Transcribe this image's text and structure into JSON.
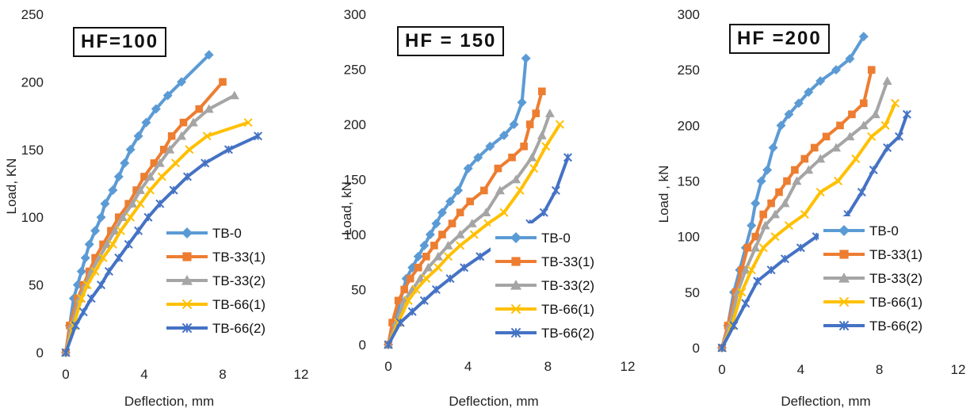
{
  "colors": {
    "TB-0": "#5B9BD5",
    "TB-33(1)": "#ED7D31",
    "TB-33(2)": "#A5A5A5",
    "TB-66(1)": "#FFC000",
    "TB-66(2)": "#4472C4"
  },
  "markers": {
    "TB-0": "diamond",
    "TB-33(1)": "square",
    "TB-33(2)": "triangle",
    "TB-66(1)": "x",
    "TB-66(2)": "star"
  },
  "chart_data": [
    {
      "type": "line",
      "label": "HF=100",
      "xlabel": "Deflection,  mm",
      "ylabel": "Load, KN",
      "xlim": [
        0,
        12
      ],
      "ylim": [
        0,
        250
      ],
      "xticks": [
        "0",
        "4",
        "8",
        "12"
      ],
      "yticks": [
        "0",
        "50",
        "100",
        "150",
        "200",
        "250"
      ],
      "legend_position": "bottom-right",
      "series": [
        {
          "name": "TB-0",
          "x": [
            0,
            0.2,
            0.4,
            0.6,
            0.8,
            1.0,
            1.2,
            1.5,
            1.8,
            2.0,
            2.4,
            2.7,
            3.0,
            3.3,
            3.7,
            4.1,
            4.6,
            5.2,
            5.9,
            7.3
          ],
          "y": [
            0,
            20,
            40,
            50,
            60,
            70,
            80,
            90,
            100,
            110,
            120,
            130,
            140,
            150,
            160,
            170,
            180,
            190,
            200,
            220
          ]
        },
        {
          "name": "TB-33(1)",
          "x": [
            0,
            0.2,
            0.6,
            0.9,
            1.2,
            1.5,
            1.9,
            2.3,
            2.7,
            3.2,
            3.6,
            4.0,
            4.5,
            5.0,
            5.4,
            6.0,
            6.8,
            8.0
          ],
          "y": [
            0,
            20,
            40,
            50,
            60,
            70,
            80,
            90,
            100,
            110,
            120,
            130,
            140,
            150,
            160,
            170,
            180,
            200
          ]
        },
        {
          "name": "TB-33(2)",
          "x": [
            0,
            0.3,
            0.7,
            1.0,
            1.3,
            1.7,
            2.1,
            2.5,
            2.9,
            3.4,
            3.8,
            4.3,
            4.8,
            5.3,
            5.9,
            6.5,
            7.3,
            8.6
          ],
          "y": [
            0,
            20,
            40,
            50,
            60,
            70,
            80,
            90,
            100,
            110,
            120,
            130,
            140,
            150,
            160,
            170,
            180,
            190
          ]
        },
        {
          "name": "TB-66(1)",
          "x": [
            0,
            0.4,
            0.8,
            1.1,
            1.5,
            1.9,
            2.4,
            2.8,
            3.3,
            3.8,
            4.3,
            4.9,
            5.6,
            6.3,
            7.2,
            9.3
          ],
          "y": [
            0,
            20,
            40,
            50,
            60,
            70,
            80,
            90,
            100,
            110,
            120,
            130,
            140,
            150,
            160,
            170
          ]
        },
        {
          "name": "TB-66(2)",
          "x": [
            0,
            0.5,
            0.9,
            1.3,
            1.8,
            2.2,
            2.7,
            3.2,
            3.7,
            4.2,
            4.8,
            5.5,
            6.2,
            7.1,
            8.3,
            9.8
          ],
          "y": [
            0,
            20,
            30,
            40,
            50,
            60,
            70,
            80,
            90,
            100,
            110,
            120,
            130,
            140,
            150,
            160
          ]
        }
      ]
    },
    {
      "type": "line",
      "label": "HF = 150",
      "xlabel": "Deflection, mm",
      "ylabel": "Load, kN",
      "xlim": [
        0,
        12
      ],
      "ylim": [
        0,
        300
      ],
      "xticks": [
        "0",
        "4",
        "8",
        "12"
      ],
      "yticks": [
        "0",
        "50",
        "100",
        "150",
        "200",
        "250",
        "300"
      ],
      "legend_position": "bottom-right",
      "series": [
        {
          "name": "TB-0",
          "x": [
            0,
            0.3,
            0.6,
            0.9,
            1.2,
            1.5,
            1.8,
            2.1,
            2.4,
            2.7,
            3.1,
            3.5,
            4.0,
            4.5,
            5.1,
            5.8,
            6.3,
            6.7,
            6.9
          ],
          "y": [
            0,
            20,
            40,
            60,
            70,
            80,
            90,
            100,
            110,
            120,
            130,
            140,
            160,
            170,
            180,
            190,
            200,
            220,
            260
          ]
        },
        {
          "name": "TB-33(1)",
          "x": [
            0,
            0.2,
            0.5,
            0.8,
            1.1,
            1.5,
            1.9,
            2.3,
            2.7,
            3.2,
            3.6,
            4.1,
            4.8,
            5.5,
            6.2,
            6.8,
            7.1,
            7.4,
            7.7
          ],
          "y": [
            0,
            20,
            40,
            50,
            60,
            70,
            80,
            90,
            100,
            110,
            120,
            130,
            140,
            160,
            170,
            180,
            200,
            210,
            230
          ]
        },
        {
          "name": "TB-33(2)",
          "x": [
            0,
            0.4,
            0.8,
            1.2,
            1.6,
            2.0,
            2.5,
            3.0,
            3.6,
            4.2,
            4.9,
            5.6,
            6.4,
            7.2,
            7.7,
            8.1
          ],
          "y": [
            0,
            20,
            40,
            50,
            60,
            70,
            80,
            90,
            100,
            110,
            120,
            140,
            150,
            170,
            190,
            210
          ]
        },
        {
          "name": "TB-66(1)",
          "x": [
            0,
            0.5,
            1.0,
            1.4,
            1.9,
            2.5,
            3.0,
            3.6,
            4.3,
            5.0,
            5.8,
            6.6,
            7.3,
            7.9,
            8.6
          ],
          "y": [
            0,
            20,
            40,
            50,
            60,
            70,
            80,
            90,
            100,
            110,
            120,
            140,
            160,
            180,
            200
          ]
        },
        {
          "name": "TB-66(2)",
          "x": [
            0,
            0.6,
            1.2,
            1.8,
            2.4,
            3.1,
            3.8,
            4.6,
            5.4,
            6.3,
            7.1,
            7.8,
            8.4,
            9.0
          ],
          "y": [
            0,
            20,
            30,
            40,
            50,
            60,
            70,
            80,
            90,
            100,
            110,
            120,
            140,
            170
          ]
        }
      ]
    },
    {
      "type": "line",
      "label": "HF =200",
      "xlabel": "Deflection, mm",
      "ylabel": "Load , kN",
      "xlim": [
        0,
        12
      ],
      "ylim": [
        0,
        300
      ],
      "xticks": [
        "0",
        "4",
        "8",
        "12"
      ],
      "yticks": [
        "0",
        "50",
        "100",
        "150",
        "200",
        "250",
        "300"
      ],
      "legend_position": "bottom-right",
      "series": [
        {
          "name": "TB-0",
          "x": [
            0,
            0.3,
            0.6,
            0.9,
            1.2,
            1.5,
            1.7,
            2.0,
            2.3,
            2.6,
            3.0,
            3.4,
            3.9,
            4.4,
            5.0,
            5.8,
            6.5,
            7.2
          ],
          "y": [
            0,
            20,
            50,
            70,
            90,
            110,
            130,
            150,
            160,
            180,
            200,
            210,
            220,
            230,
            240,
            250,
            260,
            280
          ]
        },
        {
          "name": "TB-33(1)",
          "x": [
            0,
            0.3,
            0.7,
            1.0,
            1.3,
            1.7,
            2.1,
            2.5,
            2.9,
            3.3,
            3.7,
            4.2,
            4.7,
            5.3,
            6.0,
            6.6,
            7.2,
            7.6
          ],
          "y": [
            0,
            20,
            50,
            70,
            90,
            100,
            120,
            130,
            140,
            150,
            160,
            170,
            180,
            190,
            200,
            210,
            220,
            250
          ]
        },
        {
          "name": "TB-33(2)",
          "x": [
            0,
            0.4,
            0.8,
            1.2,
            1.7,
            2.2,
            2.7,
            3.2,
            3.8,
            4.4,
            5.0,
            5.8,
            6.5,
            7.2,
            7.8,
            8.4
          ],
          "y": [
            0,
            20,
            50,
            70,
            90,
            110,
            120,
            130,
            150,
            160,
            170,
            180,
            190,
            200,
            210,
            240
          ]
        },
        {
          "name": "TB-66(1)",
          "x": [
            0,
            0.5,
            1.0,
            1.5,
            2.1,
            2.7,
            3.4,
            4.2,
            5.0,
            5.9,
            6.8,
            7.6,
            8.3,
            8.8
          ],
          "y": [
            0,
            20,
            50,
            70,
            90,
            100,
            110,
            120,
            140,
            150,
            170,
            190,
            200,
            220
          ]
        },
        {
          "name": "TB-66(2)",
          "x": [
            0,
            0.6,
            1.2,
            1.8,
            2.5,
            3.2,
            4.0,
            4.8,
            5.6,
            6.4,
            7.1,
            7.7,
            8.4,
            9.0,
            9.4
          ],
          "y": [
            0,
            20,
            40,
            60,
            70,
            80,
            90,
            100,
            110,
            120,
            140,
            160,
            180,
            190,
            210
          ]
        }
      ]
    }
  ]
}
